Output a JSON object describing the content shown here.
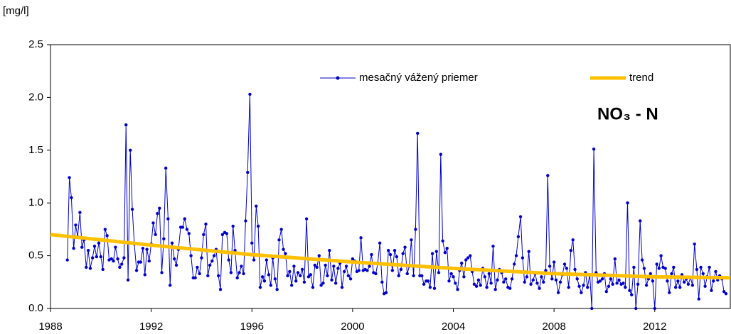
{
  "chart_data": {
    "type": "line",
    "y_label": "[mg/l]",
    "annotation": "NO₃ - N",
    "xlim": [
      1988,
      2015
    ],
    "xticks": [
      1988,
      1992,
      1996,
      2000,
      2004,
      2008,
      2012
    ],
    "ylim": [
      0,
      2.5
    ],
    "yticks": [
      {
        "value": 0,
        "label": "0.0"
      },
      0.5,
      {
        "value": 1,
        "label": "1.0"
      },
      1.5,
      {
        "value": 2,
        "label": "2.0"
      },
      2.5
    ],
    "legend": "top",
    "series": [
      {
        "name": "mesačný vážený priemer",
        "color": "#0000cc",
        "marker": true,
        "x": [
          1988.67,
          1988.75,
          1988.83,
          1988.92,
          1989.0,
          1989.08,
          1989.17,
          1989.25,
          1989.33,
          1989.42,
          1989.5,
          1989.58,
          1989.67,
          1989.75,
          1989.83,
          1989.92,
          1990.0,
          1990.08,
          1990.17,
          1990.25,
          1990.33,
          1990.42,
          1990.5,
          1990.58,
          1990.67,
          1990.75,
          1990.83,
          1990.92,
          1991.0,
          1991.08,
          1991.17,
          1991.25,
          1991.33,
          1991.42,
          1991.5,
          1991.58,
          1991.67,
          1991.75,
          1991.83,
          1991.92,
          1992.0,
          1992.08,
          1992.17,
          1992.25,
          1992.33,
          1992.42,
          1992.5,
          1992.58,
          1992.67,
          1992.75,
          1992.83,
          1992.92,
          1993.0,
          1993.08,
          1993.17,
          1993.25,
          1993.33,
          1993.42,
          1993.5,
          1993.58,
          1993.67,
          1993.75,
          1993.83,
          1993.92,
          1994.0,
          1994.08,
          1994.17,
          1994.25,
          1994.33,
          1994.42,
          1994.5,
          1994.58,
          1994.67,
          1994.75,
          1994.83,
          1994.92,
          1995.0,
          1995.08,
          1995.17,
          1995.25,
          1995.33,
          1995.42,
          1995.5,
          1995.58,
          1995.67,
          1995.75,
          1995.83,
          1995.92,
          1996.0,
          1996.08,
          1996.17,
          1996.25,
          1996.33,
          1996.42,
          1996.5,
          1996.58,
          1996.67,
          1996.75,
          1996.83,
          1996.92,
          1997.0,
          1997.08,
          1997.17,
          1997.25,
          1997.33,
          1997.42,
          1997.5,
          1997.58,
          1997.67,
          1997.75,
          1997.83,
          1997.92,
          1998.0,
          1998.08,
          1998.17,
          1998.25,
          1998.33,
          1998.42,
          1998.5,
          1998.58,
          1998.67,
          1998.75,
          1998.83,
          1998.92,
          1999.0,
          1999.08,
          1999.17,
          1999.25,
          1999.33,
          1999.42,
          1999.5,
          1999.58,
          1999.67,
          1999.75,
          1999.83,
          1999.92,
          2000.0,
          2000.08,
          2000.17,
          2000.25,
          2000.33,
          2000.42,
          2000.5,
          2000.58,
          2000.67,
          2000.75,
          2000.83,
          2000.92,
          2001.0,
          2001.08,
          2001.17,
          2001.25,
          2001.33,
          2001.42,
          2001.5,
          2001.58,
          2001.67,
          2001.75,
          2001.83,
          2001.92,
          2002.0,
          2002.08,
          2002.17,
          2002.25,
          2002.33,
          2002.42,
          2002.5,
          2002.58,
          2002.67,
          2002.75,
          2002.83,
          2002.92,
          2003.0,
          2003.08,
          2003.17,
          2003.25,
          2003.33,
          2003.42,
          2003.5,
          2003.58,
          2003.67,
          2003.75,
          2003.83,
          2003.92,
          2004.0,
          2004.08,
          2004.17,
          2004.25,
          2004.33,
          2004.42,
          2004.5,
          2004.58,
          2004.67,
          2004.75,
          2004.83,
          2004.92,
          2005.0,
          2005.08,
          2005.17,
          2005.25,
          2005.33,
          2005.42,
          2005.5,
          2005.58,
          2005.67,
          2005.75,
          2005.83,
          2005.92,
          2006.0,
          2006.08,
          2006.17,
          2006.25,
          2006.33,
          2006.42,
          2006.5,
          2006.58,
          2006.67,
          2006.75,
          2006.83,
          2006.92,
          2007.0,
          2007.08,
          2007.17,
          2007.25,
          2007.33,
          2007.42,
          2007.5,
          2007.58,
          2007.67,
          2007.75,
          2007.83,
          2007.92,
          2008.0,
          2008.08,
          2008.17,
          2008.25,
          2008.33,
          2008.42,
          2008.5,
          2008.58,
          2008.67,
          2008.75,
          2008.83,
          2008.92,
          2009.0,
          2009.08,
          2009.17,
          2009.25,
          2009.33,
          2009.42,
          2009.5,
          2009.58,
          2009.67,
          2009.75,
          2009.83,
          2009.92,
          2010.0,
          2010.08,
          2010.17,
          2010.25,
          2010.33,
          2010.42,
          2010.5,
          2010.58,
          2010.67,
          2010.75,
          2010.83,
          2010.92,
          2011.0,
          2011.08,
          2011.17,
          2011.25,
          2011.33,
          2011.42,
          2011.5,
          2011.58,
          2011.67,
          2011.75,
          2011.83,
          2011.92,
          2012.0,
          2012.08,
          2012.17,
          2012.25,
          2012.33,
          2012.42,
          2012.5,
          2012.58,
          2012.67,
          2012.75,
          2012.83,
          2012.92,
          2013.0,
          2013.08,
          2013.17,
          2013.25,
          2013.33,
          2013.42,
          2013.5,
          2013.58,
          2013.67,
          2013.75,
          2013.83,
          2013.92,
          2014.0,
          2014.08,
          2014.17,
          2014.25,
          2014.33,
          2014.42,
          2014.5,
          2014.58,
          2014.67,
          2014.75,
          2014.83
        ],
        "values": [
          0.46,
          1.24,
          1.05,
          0.57,
          0.79,
          0.68,
          0.91,
          0.58,
          0.65,
          0.39,
          0.55,
          0.38,
          0.48,
          0.59,
          0.49,
          0.62,
          0.49,
          0.37,
          0.75,
          0.69,
          0.46,
          0.47,
          0.45,
          0.58,
          0.47,
          0.39,
          0.42,
          0.48,
          1.74,
          0.27,
          1.5,
          0.94,
          0.61,
          0.36,
          0.44,
          0.44,
          0.57,
          0.32,
          0.56,
          0.45,
          0.61,
          0.81,
          0.7,
          0.9,
          0.95,
          0.34,
          0.66,
          1.33,
          0.85,
          0.22,
          0.62,
          0.47,
          0.41,
          0.56,
          0.77,
          0.77,
          0.85,
          0.75,
          0.71,
          0.5,
          0.29,
          0.29,
          0.39,
          0.33,
          0.48,
          0.7,
          0.8,
          0.31,
          0.41,
          0.45,
          0.5,
          0.56,
          0.31,
          0.18,
          0.7,
          0.72,
          0.71,
          0.46,
          0.34,
          0.78,
          0.55,
          0.29,
          0.34,
          0.4,
          0.33,
          0.83,
          1.29,
          2.03,
          0.62,
          0.46,
          0.97,
          0.78,
          0.2,
          0.3,
          0.26,
          0.46,
          0.32,
          0.22,
          0.48,
          0.28,
          0.18,
          0.65,
          0.75,
          0.56,
          0.52,
          0.31,
          0.35,
          0.22,
          0.4,
          0.26,
          0.34,
          0.31,
          0.37,
          0.25,
          0.85,
          0.3,
          0.32,
          0.2,
          0.41,
          0.39,
          0.5,
          0.22,
          0.24,
          0.41,
          0.31,
          0.55,
          0.27,
          0.4,
          0.24,
          0.38,
          0.43,
          0.2,
          0.35,
          0.4,
          0.31,
          0.28,
          0.47,
          0.45,
          0.35,
          0.36,
          0.67,
          0.36,
          0.37,
          0.36,
          0.4,
          0.51,
          0.34,
          0.33,
          0.43,
          0.62,
          0.25,
          0.14,
          0.15,
          0.55,
          0.51,
          0.36,
          0.55,
          0.49,
          0.31,
          0.37,
          0.52,
          0.58,
          0.33,
          0.4,
          0.65,
          0.31,
          0.75,
          1.66,
          0.31,
          0.31,
          0.23,
          0.26,
          0.26,
          0.2,
          0.52,
          0.19,
          0.54,
          0.34,
          1.46,
          0.64,
          0.53,
          0.57,
          0.26,
          0.33,
          0.3,
          0.24,
          0.18,
          0.36,
          0.43,
          0.3,
          0.46,
          0.48,
          0.5,
          0.35,
          0.23,
          0.21,
          0.27,
          0.22,
          0.38,
          0.3,
          0.2,
          0.33,
          0.24,
          0.59,
          0.18,
          0.27,
          0.37,
          0.34,
          0.25,
          0.28,
          0.2,
          0.19,
          0.28,
          0.42,
          0.5,
          0.68,
          0.87,
          0.48,
          0.25,
          0.3,
          0.54,
          0.23,
          0.27,
          0.33,
          0.24,
          0.19,
          0.3,
          0.25,
          0.36,
          1.26,
          0.4,
          0.28,
          0.44,
          0.27,
          0.15,
          0.25,
          0.32,
          0.42,
          0.38,
          0.2,
          0.55,
          0.65,
          0.37,
          0.28,
          0.21,
          0.15,
          0.22,
          0.34,
          0.2,
          0.32,
          0.0,
          1.51,
          0.34,
          0.25,
          0.26,
          0.28,
          0.33,
          0.16,
          0.21,
          0.28,
          0.23,
          0.47,
          0.24,
          0.27,
          0.23,
          0.24,
          0.2,
          1.0,
          0.17,
          0.13,
          0.39,
          0.0,
          0.23,
          0.83,
          0.46,
          0.38,
          0.22,
          0.28,
          0.33,
          0.26,
          0.0,
          0.42,
          0.38,
          0.5,
          0.39,
          0.38,
          0.26,
          0.15,
          0.33,
          0.39,
          0.2,
          0.26,
          0.2,
          0.32,
          0.25,
          0.28,
          0.23,
          0.29,
          0.22,
          0.61,
          0.37,
          0.09,
          0.39,
          0.33,
          0.21,
          0.3,
          0.39,
          0.17,
          0.26,
          0.35,
          0.27,
          0.31,
          0.28,
          0.16,
          0.14
        ]
      },
      {
        "name": "trend",
        "color": "#ffc000",
        "marker": false,
        "x": [
          1988,
          1992,
          1996,
          2000,
          2004,
          2008,
          2012,
          2015
        ],
        "values": [
          0.7,
          0.6,
          0.51,
          0.44,
          0.38,
          0.33,
          0.3,
          0.29
        ]
      }
    ]
  }
}
